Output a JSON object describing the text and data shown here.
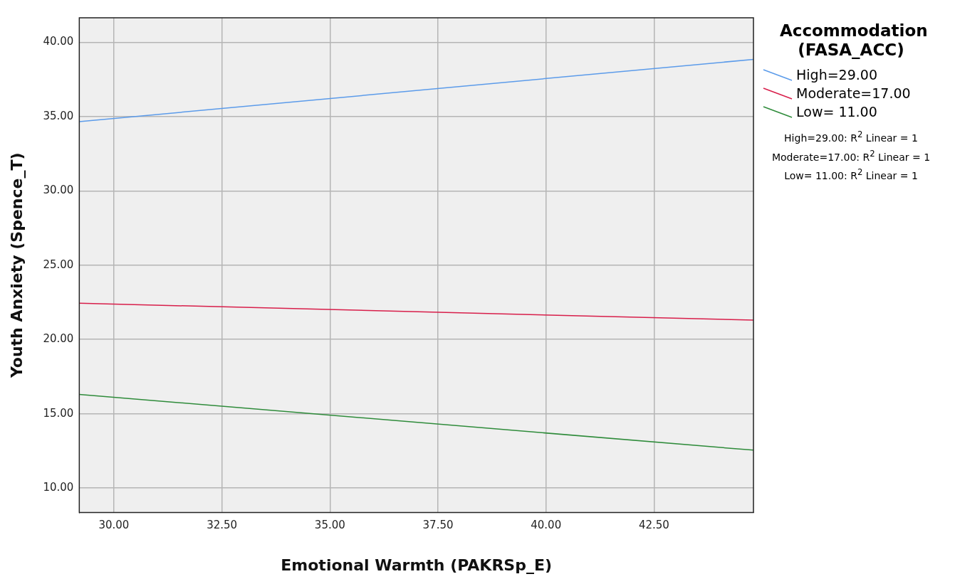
{
  "chart_data": {
    "type": "line",
    "xlabel": "Emotional Warmth (PAKRSp_E)",
    "ylabel": "Youth Anxiety (Spence_T)",
    "legend_title": "Accommodation (FASA_ACC)",
    "legend": "top right",
    "grid": true,
    "marker": "none",
    "line_style": "solid",
    "xlim": [
      29.2,
      44.8
    ],
    "xticks": [
      {
        "value": 30,
        "label": "30.00"
      },
      {
        "value": 32.5,
        "label": "32.50"
      },
      {
        "value": 35,
        "label": "35.00"
      },
      {
        "value": 37.5,
        "label": "37.50"
      },
      {
        "value": 40,
        "label": "40.00"
      },
      {
        "value": 42.5,
        "label": "42.50"
      }
    ],
    "ylim": [
      8.35,
      41.65
    ],
    "yticks": [
      {
        "value": 10,
        "label": "10.00"
      },
      {
        "value": 15,
        "label": "15.00"
      },
      {
        "value": 20,
        "label": "20.00"
      },
      {
        "value": 25,
        "label": "25.00"
      },
      {
        "value": 30,
        "label": "30.00"
      },
      {
        "value": 35,
        "label": "35.00"
      },
      {
        "value": 40,
        "label": "40.00"
      }
    ],
    "x": [
      29.2,
      44.8
    ],
    "series": [
      {
        "name": "High=29.00",
        "color": "#5b9bea",
        "values": [
          34.66,
          38.85
        ]
      },
      {
        "name": "Moderate=17.00",
        "color": "#d81e4a",
        "values": [
          22.44,
          21.3
        ]
      },
      {
        "name": "Low= 11.00",
        "color": "#2e8b3a",
        "values": [
          16.3,
          12.55
        ]
      }
    ],
    "annotations": [
      "High=29.00: R$^{2}$ Linear = 1",
      "Moderate=17.00: R$^{2}$ Linear = 1",
      "Low= 11.00: R$^{2}$ Linear = 1"
    ]
  }
}
